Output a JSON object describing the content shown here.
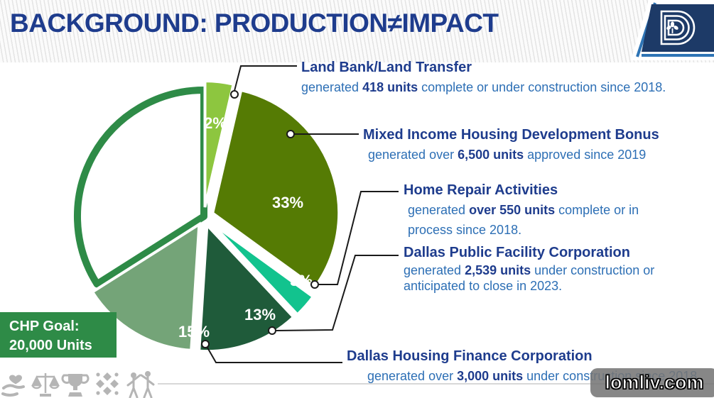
{
  "slide": {
    "title": "BACKGROUND: PRODUCTION≠IMPACT",
    "logo_name": "city-of-dallas-logo"
  },
  "goal_box": {
    "line1": "CHP Goal:",
    "line2": "20,000 Units"
  },
  "programs": [
    {
      "name": "Land Bank/Land Transfer",
      "percent": "2%",
      "desc": [
        {
          "t": "generated "
        },
        {
          "t": "418 units",
          "b": true
        },
        {
          "t": " complete or under construction since 2018."
        }
      ]
    },
    {
      "name": "Mixed Income Housing Development Bonus",
      "percent": "33%",
      "desc": [
        {
          "t": "generated over "
        },
        {
          "t": "6,500 units",
          "b": true
        },
        {
          "t": " approved since 2019"
        }
      ]
    },
    {
      "name": "Home Repair Activities",
      "percent": "3%",
      "desc": [
        {
          "t": "generated "
        },
        {
          "t": "over 550 units",
          "b": true
        },
        {
          "t": " complete or in process since 2018."
        }
      ]
    },
    {
      "name": "Dallas Public Facility Corporation",
      "percent": "13%",
      "desc": [
        {
          "t": "generated "
        },
        {
          "t": "2,539 units",
          "b": true
        },
        {
          "t": " under construction or anticipated to close in 2023."
        }
      ]
    },
    {
      "name": "Dallas Housing Finance Corporation",
      "percent": "15%",
      "desc": [
        {
          "t": "generated over "
        },
        {
          "t": "3,000 units",
          "b": true
        },
        {
          "t": " under construction since 2018"
        }
      ]
    }
  ],
  "chart_data": {
    "type": "pie",
    "goal_label": "CHP Goal: 20,000 Units",
    "goal_units": 20000,
    "slices": [
      {
        "label": "Land Bank/Land Transfer",
        "percent": 2,
        "units": 418,
        "color": "#8dc63f"
      },
      {
        "label": "Mixed Income Housing Development Bonus",
        "percent": 33,
        "units": 6500,
        "color": "#557b04"
      },
      {
        "label": "Home Repair Activities",
        "percent": 3,
        "units": 550,
        "color": "#12c38e"
      },
      {
        "label": "Dallas Public Facility Corporation",
        "percent": 13,
        "units": 2539,
        "color": "#1f5b3a"
      },
      {
        "label": "Dallas Housing Finance Corporation",
        "percent": 15,
        "units": 3000,
        "color": "#74a478"
      },
      {
        "label": "",
        "percent": 34,
        "units": null,
        "color": "#ffffff",
        "note": "unlabeled remainder of goal, green outline only"
      }
    ],
    "labels_shown_on_slices": [
      "2%",
      "33%",
      "3%",
      "13%",
      "15%"
    ],
    "legend_position": "callout-leader-lines"
  },
  "footer_icons": [
    "hand-heart-icon",
    "scales-icon",
    "trophy-icon",
    "pinwheel-icon",
    "people-icon"
  ],
  "watermark": "lomliv.com",
  "colors": {
    "title_navy": "#1e3c8d",
    "body_blue": "#2d6fb5",
    "goal_green": "#2e8b47",
    "arc_green": "#2e8b47",
    "logo_navy": "#1d3a67",
    "logo_accent_blue": "#2e74b5",
    "icon_gray": "#b5b5b5"
  }
}
